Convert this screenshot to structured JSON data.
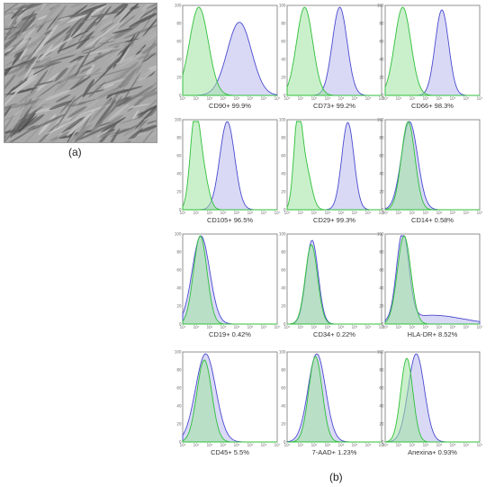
{
  "labels": {
    "a": "(a)",
    "b": "(b)"
  },
  "colors": {
    "isotype": "#2fbf3a",
    "isotype_fill": "#9fe3a1",
    "marker": "#4a4ad0",
    "marker_fill": "#c9c9f2"
  },
  "chart_data": {
    "type": "area",
    "y_ticks": [
      "0",
      "20",
      "40",
      "60",
      "80",
      "100"
    ],
    "x_ticks": [
      "10⁰",
      "10¹",
      "10²",
      "10³",
      "10⁴",
      "10⁵",
      "10⁶",
      "10⁷"
    ],
    "ylim": [
      0,
      100
    ],
    "panels": [
      {
        "caption": "CD90+ 99.9%",
        "iso": [
          [
            1.2,
            100,
            0.7
          ]
        ],
        "marker": [
          [
            4.2,
            83,
            0.9
          ]
        ]
      },
      {
        "caption": "CD73+ 99.2%",
        "iso": [
          [
            1.3,
            100,
            0.6
          ]
        ],
        "marker": [
          [
            3.9,
            100,
            0.55
          ]
        ]
      },
      {
        "caption": "CD66+ 98.3%",
        "iso": [
          [
            1.3,
            100,
            0.6
          ]
        ],
        "marker": [
          [
            4.2,
            97,
            0.5
          ]
        ]
      },
      {
        "caption": "CD105+ 96.5%",
        "iso": [
          [
            0.9,
            100,
            0.35
          ],
          [
            1.5,
            40,
            0.4
          ]
        ],
        "marker": [
          [
            3.3,
            100,
            0.55
          ]
        ]
      },
      {
        "caption": "CD29+ 99.3%",
        "iso": [
          [
            0.8,
            100,
            0.3
          ],
          [
            1.4,
            45,
            0.4
          ]
        ],
        "marker": [
          [
            4.5,
            99,
            0.45
          ]
        ]
      },
      {
        "caption": "CD14+ 0.58%",
        "iso": [
          [
            1.7,
            100,
            0.5
          ]
        ],
        "marker": [
          [
            1.8,
            100,
            0.6
          ]
        ]
      },
      {
        "caption": "CD19+ 0.42%",
        "iso": [
          [
            1.3,
            100,
            0.5
          ]
        ],
        "marker": [
          [
            1.35,
            100,
            0.65
          ]
        ]
      },
      {
        "caption": "CD34+ 0.22%",
        "iso": [
          [
            1.8,
            90,
            0.45
          ]
        ],
        "marker": [
          [
            1.85,
            95,
            0.45
          ]
        ]
      },
      {
        "caption": "HLA-DR+ 8.52%",
        "iso": [
          [
            1.4,
            100,
            0.5
          ]
        ],
        "marker": [
          [
            1.3,
            100,
            0.45
          ],
          [
            3.5,
            10,
            2.2
          ]
        ]
      },
      {
        "caption": "CD45+ 5.5%",
        "iso": [
          [
            1.6,
            93,
            0.55
          ]
        ],
        "marker": [
          [
            1.7,
            100,
            0.75
          ]
        ]
      },
      {
        "caption": "7-AAD+ 1.23%",
        "iso": [
          [
            2.1,
            97,
            0.5
          ]
        ],
        "marker": [
          [
            2.2,
            100,
            0.65
          ]
        ]
      },
      {
        "caption": "Anexina+ 0.93%",
        "iso": [
          [
            1.6,
            95,
            0.45
          ]
        ],
        "marker": [
          [
            2.3,
            100,
            0.6
          ]
        ]
      }
    ]
  }
}
